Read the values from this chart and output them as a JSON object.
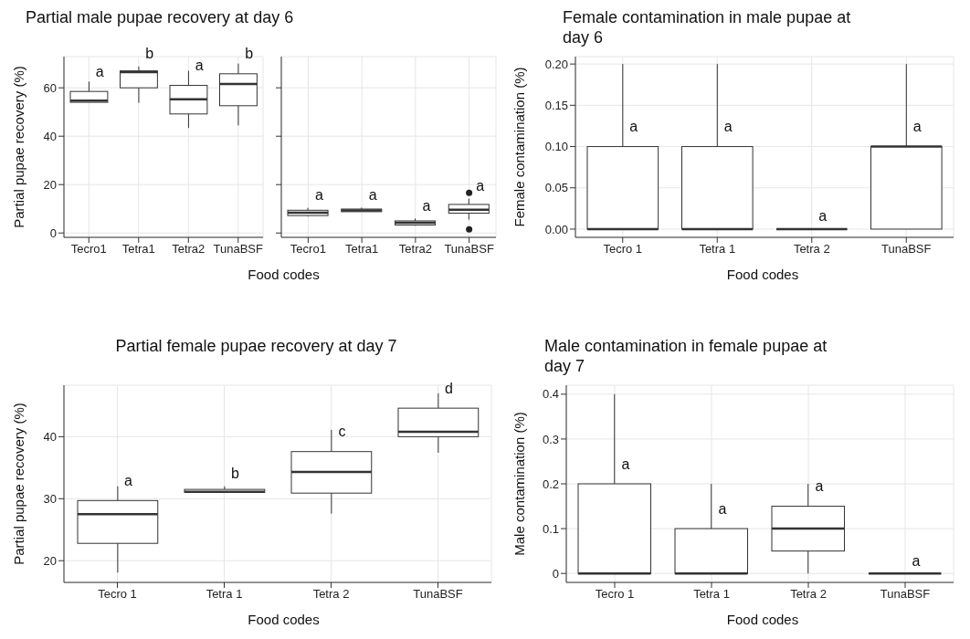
{
  "chart_data": [
    {
      "type": "box",
      "title": "Partial male pupae recovery at day 6",
      "xlabel": "Food codes",
      "ylabel": "Partial pupae recovery (%)",
      "categories": [
        "Tecro1",
        "Tetra1",
        "Tetra2",
        "TunaBSF"
      ],
      "ylim": [
        -1.8,
        72.9
      ],
      "yticks": [
        0,
        20,
        40,
        60
      ],
      "grid": true,
      "boxes": [
        {
          "low": 54,
          "q1": 54,
          "median": 54.7,
          "q3": 58.5,
          "high": 62.6
        },
        {
          "low": 53.8,
          "q1": 60,
          "median": 66.5,
          "q3": 67,
          "high": 68.8
        },
        {
          "low": 43.4,
          "q1": 49.2,
          "median": 55.3,
          "q3": 61,
          "high": 67
        },
        {
          "low": 44.5,
          "q1": 52.6,
          "median": 61.6,
          "q3": 65.8,
          "high": 70
        }
      ],
      "annotations": [
        "a",
        "b",
        "a",
        "b"
      ]
    },
    {
      "type": "box",
      "categories": [
        "Tecro1",
        "Tetra1",
        "Tetra2",
        "TunaBSF"
      ],
      "ylim": [
        -1.8,
        72.9
      ],
      "yticks": [
        0,
        20,
        40,
        60
      ],
      "grid": true,
      "tick_labels": "x",
      "boxes": [
        {
          "low": 6.8,
          "q1": 7.2,
          "median": 8.4,
          "q3": 9.4,
          "high": 10.4
        },
        {
          "low": 8.8,
          "q1": 8.8,
          "median": 9.3,
          "q3": 9.9,
          "high": 10.5
        },
        {
          "low": 3,
          "q1": 3.3,
          "median": 4.2,
          "q3": 5,
          "high": 6
        },
        {
          "low": 5.5,
          "q1": 8.2,
          "median": 9.6,
          "q3": 11.8,
          "high": 14.2,
          "outliers": [
            16.6,
            1.5
          ]
        }
      ],
      "annotations": [
        "a",
        "a",
        "a",
        "a"
      ]
    },
    {
      "type": "box",
      "title": "Female contamination in male pupae at day 6",
      "xlabel": "Food codes",
      "ylabel": "Female contamination (%)",
      "categories": [
        "Tecro 1",
        "Tetra 1",
        "Tetra 2",
        "TunaBSF"
      ],
      "ylim": [
        -0.01,
        0.209
      ],
      "yticks": [
        {
          "value": 0,
          "label": "0.00"
        },
        {
          "value": 0.05,
          "label": "0.05"
        },
        {
          "value": 0.1,
          "label": "0.10"
        },
        {
          "value": 0.15,
          "label": "0.15"
        },
        {
          "value": 0.2,
          "label": "0.20"
        }
      ],
      "grid": true,
      "boxes": [
        {
          "low": 0,
          "q1": 0,
          "median": 0,
          "q3": 0.1,
          "high": 0.2
        },
        {
          "low": 0,
          "q1": 0,
          "median": 0,
          "q3": 0.1,
          "high": 0.2
        },
        {
          "low": 0,
          "q1": 0,
          "median": 0,
          "q3": 0,
          "high": 0
        },
        {
          "low": 0,
          "q1": 0,
          "median": 0.1,
          "q3": 0.1,
          "high": 0.2
        }
      ],
      "annotations": [
        "a",
        "a",
        "a",
        "a"
      ]
    },
    {
      "type": "box",
      "title": "Partial female pupae recovery at day 7",
      "xlabel": "Food codes",
      "ylabel": "Partial pupae recovery (%)",
      "categories": [
        "Tecro 1",
        "Tetra 1",
        "Tetra 2",
        "TunaBSF"
      ],
      "ylim": [
        16.5,
        48.3
      ],
      "yticks": [
        20,
        30,
        40
      ],
      "grid": true,
      "boxes": [
        {
          "low": 18.1,
          "q1": 22.8,
          "median": 27.5,
          "q3": 29.7,
          "high": 32
        },
        {
          "low": 31,
          "q1": 31,
          "median": 31.1,
          "q3": 31.5,
          "high": 32
        },
        {
          "low": 27.6,
          "q1": 30.9,
          "median": 34.3,
          "q3": 37.6,
          "high": 41.1
        },
        {
          "low": 37.4,
          "q1": 40,
          "median": 40.8,
          "q3": 44.6,
          "high": 47
        }
      ],
      "annotations": [
        "a",
        "b",
        "c",
        "d"
      ]
    },
    {
      "type": "box",
      "title": "Male contamination in female pupae at day 7",
      "xlabel": "Food codes",
      "ylabel": "Male contamination (%)",
      "categories": [
        "Tecro 1",
        "Tetra 1",
        "Tetra 2",
        "TunaBSF"
      ],
      "ylim": [
        -0.02,
        0.42
      ],
      "yticks": [
        0,
        0.1,
        0.2,
        0.3,
        0.4
      ],
      "grid": true,
      "boxes": [
        {
          "low": 0,
          "q1": 0,
          "median": 0,
          "q3": 0.2,
          "high": 0.4
        },
        {
          "low": 0,
          "q1": 0,
          "median": 0,
          "q3": 0.1,
          "high": 0.2
        },
        {
          "low": 0,
          "q1": 0.05,
          "median": 0.1,
          "q3": 0.15,
          "high": 0.2
        },
        {
          "low": 0,
          "q1": 0,
          "median": 0,
          "q3": 0,
          "high": 0
        }
      ],
      "annotations": [
        "a",
        "a",
        "a",
        "a"
      ]
    }
  ]
}
